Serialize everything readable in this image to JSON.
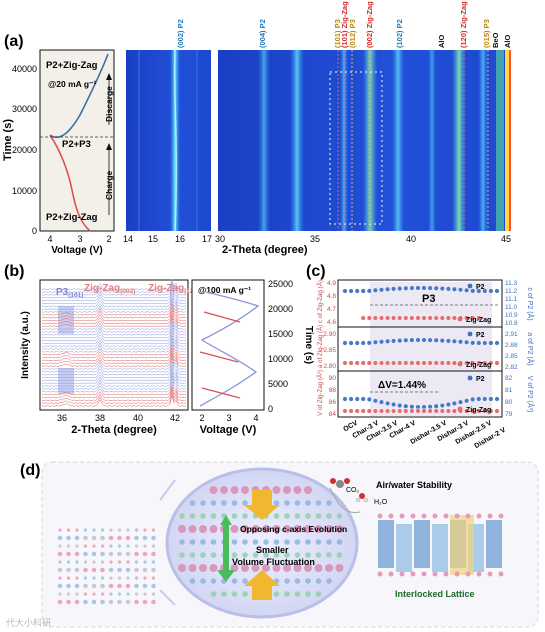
{
  "panel_a": {
    "label": "(a)",
    "left_ylabel": "Time (s)",
    "left_yticks": [
      "0",
      "10000",
      "20000",
      "30000",
      "40000"
    ],
    "left_xticks": [
      "4",
      "3",
      "2"
    ],
    "left_xlabel": "Voltage (V)",
    "current_label": "@20 mA g⁻¹",
    "phase_top": "P2+Zig-Zag",
    "phase_mid": "P2+P3",
    "phase_bottom": "P2+Zig-Zag",
    "discharge_label": "Discarge",
    "charge_label": "Charge",
    "map1_xticks": [
      "14",
      "15",
      "16",
      "17"
    ],
    "map2_xticks": [
      "30",
      "35",
      "40",
      "45"
    ],
    "map_xlabel": "2-Theta (degree)",
    "peak_labels": [
      {
        "text": "(002) P2",
        "color": "#1f77b4"
      },
      {
        "text": "(004) P2",
        "color": "#1f77b4"
      },
      {
        "text": "(101) P3",
        "color": "#b8860b"
      },
      {
        "text": "(101) Zig-Zag",
        "color": "#d62728"
      },
      {
        "text": "(012) P3",
        "color": "#b8860b"
      },
      {
        "text": "(002) Zig-Zag",
        "color": "#d62728"
      },
      {
        "text": "(102) P2",
        "color": "#1f77b4"
      },
      {
        "text": "AlO",
        "color": "#111111"
      },
      {
        "text": "(120) Zig-Zag",
        "color": "#d62728"
      },
      {
        "text": "(015) P3",
        "color": "#b8860b"
      },
      {
        "text": "BeO",
        "color": "#111111"
      },
      {
        "text": "AlO",
        "color": "#111111"
      }
    ]
  },
  "panel_b": {
    "label": "(b)",
    "ylabel": "Intensity (a.u.)",
    "xlabel": "2-Theta (degree)",
    "xticks": [
      "36",
      "38",
      "40",
      "42"
    ],
    "label_p3": "P3",
    "label_p3_sub": "(101)",
    "label_zz1": "Zig-Zag",
    "label_zz1_sub": "(002)",
    "label_zz2": "Zig-Zag",
    "label_zz2_sub": "(120)",
    "current_label": "@100 mA g⁻¹",
    "right_ylabel": "Time (s)",
    "right_yticks": [
      "0",
      "5000",
      "10000",
      "15000",
      "20000",
      "25000"
    ],
    "volt_xticks": [
      "2",
      "3",
      "4"
    ],
    "volt_xlabel": "Voltage (V)"
  },
  "panel_c": {
    "label": "(c)",
    "left_ylabel": "V of Zig-Zag (Å³) a of Zig-Zag (Å) c of Zig-Zag (Å)",
    "right_label_c": "c of P2 (Å)",
    "right_label_a": "a of P2 (Å)",
    "right_label_v": "V of P2 (Å³)",
    "top_left_ticks": [
      "4.9",
      "4.8",
      "4.7",
      "4.6"
    ],
    "top_right_ticks": [
      "11.3",
      "11.2",
      "11.1",
      "11.0",
      "10.9",
      "10.8"
    ],
    "mid_left_ticks": [
      "2.90",
      "2.85",
      "2.80"
    ],
    "mid_right_ticks": [
      "2.91",
      "2.88",
      "2.85",
      "2.82"
    ],
    "bot_left_ticks": [
      "90",
      "88",
      "86",
      "84"
    ],
    "bot_right_ticks": [
      "82",
      "81",
      "80",
      "79"
    ],
    "legend_p2": "P2",
    "legend_zz": "Zig-Zag",
    "p3_label": "P3",
    "dv_label": "ΔV=1.44%",
    "x_categories": [
      "OCV",
      "Char-3 V",
      "Char-3.5 V",
      "Char-4 V",
      "Dishar-3.5 V",
      "Dishar-3 V",
      "Dishar-2.5 V",
      "Dishar-2 V"
    ]
  },
  "panel_d": {
    "label": "(d)",
    "air_water": "Air/water Stability",
    "co2": "CO₂",
    "h2o": "H₂O",
    "opposing": "Opposing c-axis Evolution",
    "smaller": "Smaller",
    "volume": "Volume Fluctuation",
    "interlocked": "Interlocked Lattice"
  },
  "watermark": "代大小科研"
}
